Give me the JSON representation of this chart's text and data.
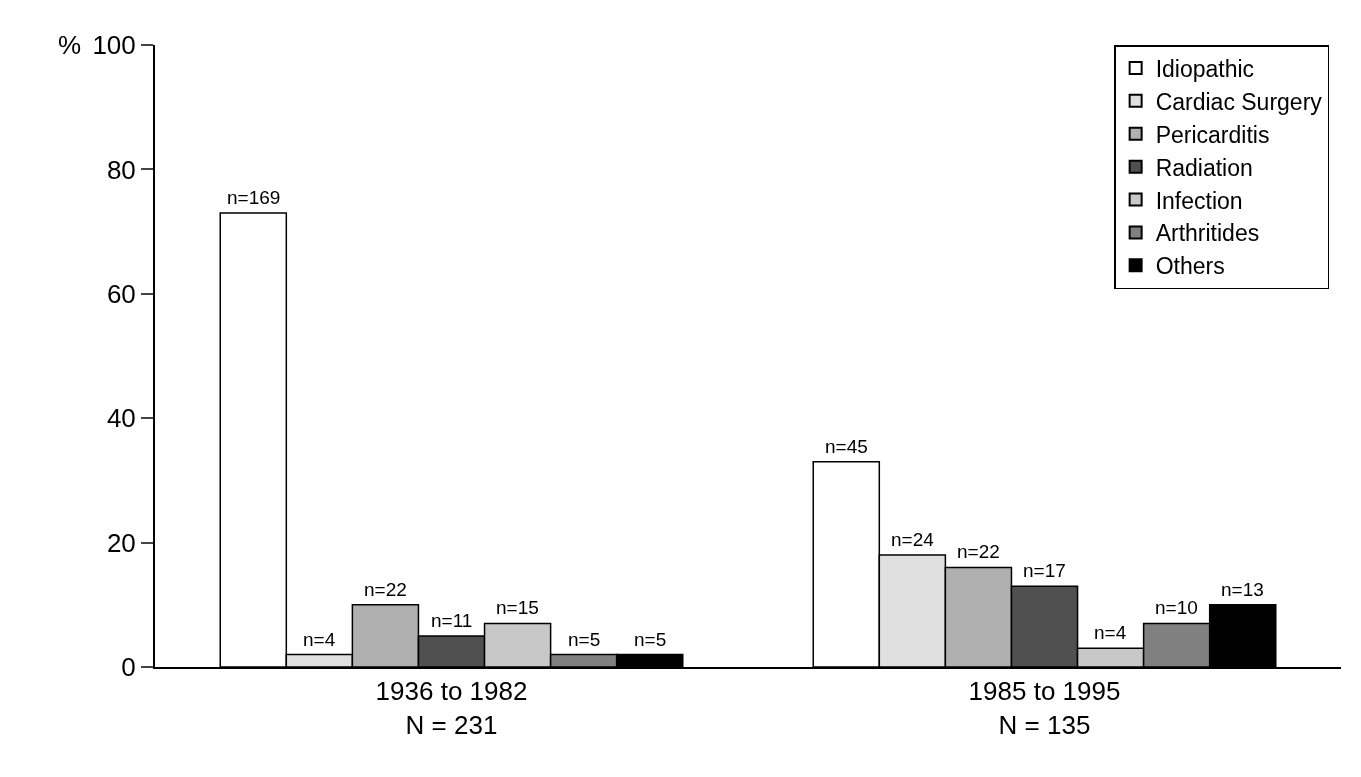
{
  "chart_data": {
    "type": "bar",
    "ylabel": "%",
    "categories": [
      "1936 to 1982\nN = 231",
      "1985 to 1995\nN = 135"
    ],
    "series": [
      {
        "name": "Idiopathic",
        "color": "#ffffff",
        "values": [
          73,
          33
        ]
      },
      {
        "name": "Cardiac Surgery",
        "color": "#e0e0e0",
        "values": [
          2,
          18
        ]
      },
      {
        "name": "Pericarditis",
        "color": "#b0b0b0",
        "values": [
          10,
          16
        ]
      },
      {
        "name": "Radiation",
        "color": "#505050",
        "values": [
          5,
          13
        ]
      },
      {
        "name": "Infection",
        "color": "#c8c8c8",
        "values": [
          7,
          3
        ]
      },
      {
        "name": "Arthritides",
        "color": "#808080",
        "values": [
          2,
          7
        ]
      },
      {
        "name": "Others",
        "color": "#000000",
        "values": [
          2,
          10
        ]
      }
    ],
    "annotations": [
      "n=169",
      "n=45",
      "n=4",
      "n=24",
      "n=22",
      "n=22",
      "n=11",
      "n=17",
      "n=15",
      "n=4",
      "n=5",
      "n=10",
      "n=5",
      "n=13"
    ],
    "ylim": [
      0,
      100
    ],
    "yticks": [
      0,
      20,
      40,
      60,
      80,
      100
    ],
    "grid": false,
    "legend": "top right"
  }
}
